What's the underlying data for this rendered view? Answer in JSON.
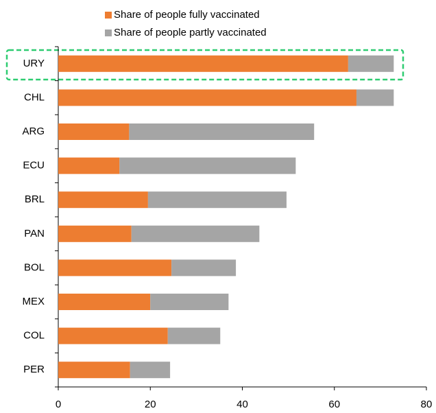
{
  "chart_data": {
    "type": "stacked_barh",
    "categories": [
      "URY",
      "CHL",
      "ARG",
      "ECU",
      "BRL",
      "PAN",
      "BOL",
      "MEX",
      "COL",
      "PER"
    ],
    "series": [
      {
        "name": "Share of people fully vaccinated",
        "color": "#ed7d31",
        "values": [
          63.0,
          64.8,
          15.4,
          13.3,
          19.5,
          15.9,
          24.6,
          20.0,
          23.8,
          15.6
        ]
      },
      {
        "name": "Share of people partly vaccinated",
        "color": "#a5a5a5",
        "values": [
          9.9,
          8.1,
          40.2,
          38.3,
          30.1,
          27.8,
          14.0,
          17.0,
          11.4,
          8.7
        ]
      }
    ],
    "xlim": [
      0,
      80
    ],
    "xticks": [
      0,
      20,
      40,
      60,
      80
    ]
  }
}
